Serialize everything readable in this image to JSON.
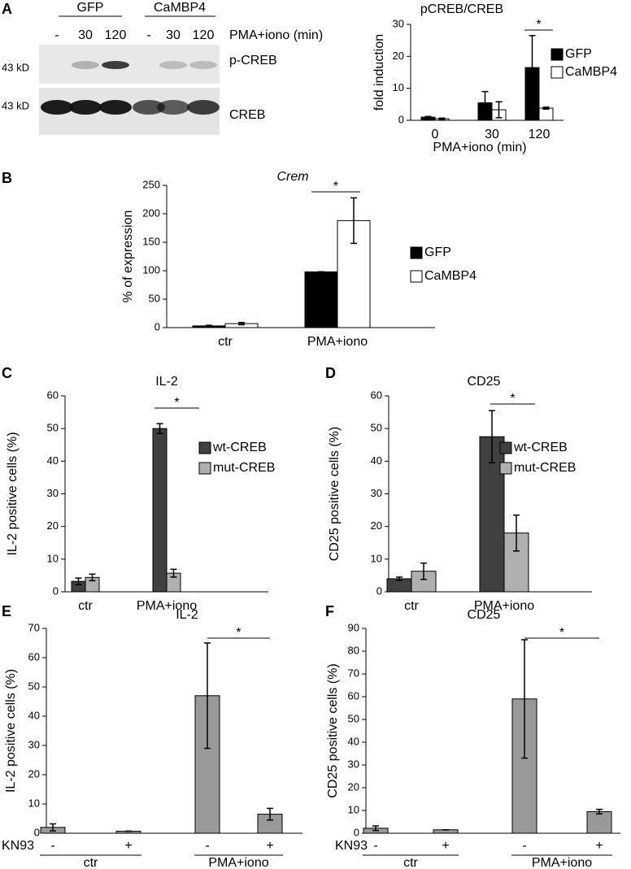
{
  "blot": {
    "panel": "A",
    "groups": [
      "GFP",
      "CaMBP4"
    ],
    "lanes": [
      "-",
      "30",
      "120",
      "-",
      "30",
      "120"
    ],
    "treatment": "PMA+iono (min)",
    "rows": [
      {
        "mw": "43 kD",
        "label": "p-CREB"
      },
      {
        "mw": "43 kD",
        "label": "CREB"
      }
    ]
  },
  "chart_data": [
    {
      "type": "bar",
      "title": "pCREB/CREB",
      "y_label": "fold induction",
      "x_label": "PMA+iono (min)",
      "categories": [
        "0",
        "30",
        "120"
      ],
      "ylim": [
        0,
        30
      ],
      "yticks": [
        0,
        10,
        20,
        30
      ],
      "annotation": "*",
      "series": [
        {
          "name": "GFP",
          "color": "#000000",
          "values": [
            1,
            5.5,
            16.5
          ],
          "errors": [
            0.2,
            3.5,
            10
          ]
        },
        {
          "name": "CaMBP4",
          "color": "#ffffff",
          "values": [
            0.5,
            3.3,
            3.8
          ],
          "errors": [
            0.2,
            2.5,
            0.3
          ]
        }
      ]
    },
    {
      "type": "bar",
      "panel": "B",
      "title": "Crem",
      "y_label": "% of expression",
      "categories": [
        "ctr",
        "PMA+iono"
      ],
      "ylim": [
        0,
        250
      ],
      "yticks": [
        0,
        50,
        100,
        150,
        200,
        250
      ],
      "annotation": "*",
      "series": [
        {
          "name": "GFP",
          "color": "#000000",
          "values": [
            3,
            98
          ],
          "errors": [
            1,
            0
          ]
        },
        {
          "name": "CaMBP4",
          "color": "#ffffff",
          "values": [
            7,
            188
          ],
          "errors": [
            2,
            40
          ]
        }
      ]
    },
    {
      "type": "bar",
      "panel": "C",
      "title": "IL-2",
      "y_label": "IL-2 positive cells (%)",
      "categories": [
        "ctr",
        "PMA+iono"
      ],
      "ylim": [
        0,
        60
      ],
      "yticks": [
        0,
        10,
        20,
        30,
        40,
        50,
        60
      ],
      "annotation": "*",
      "series": [
        {
          "name": "wt-CREB",
          "color": "#404040",
          "values": [
            3.2,
            50
          ],
          "errors": [
            1,
            1.5
          ]
        },
        {
          "name": "mut-CREB",
          "color": "#b0b0b0",
          "values": [
            4.4,
            5.7
          ],
          "errors": [
            1,
            1.2
          ]
        }
      ]
    },
    {
      "type": "bar",
      "panel": "D",
      "title": "CD25",
      "y_label": "CD25 positive cells (%)",
      "categories": [
        "ctr",
        "PMA+iono"
      ],
      "ylim": [
        0,
        60
      ],
      "yticks": [
        0,
        10,
        20,
        30,
        40,
        50,
        60
      ],
      "annotation": "*",
      "series": [
        {
          "name": "wt-CREB",
          "color": "#404040",
          "values": [
            4,
            47.5
          ],
          "errors": [
            0.5,
            8
          ]
        },
        {
          "name": "mut-CREB",
          "color": "#b0b0b0",
          "values": [
            6.3,
            18
          ],
          "errors": [
            2.5,
            5.5
          ]
        }
      ]
    },
    {
      "type": "bar",
      "panel": "E",
      "title": "IL-2",
      "y_label": "IL-2 positive cells (%)",
      "row_label": "KN93",
      "categories": [
        "-",
        "+",
        "-",
        "+"
      ],
      "groups": [
        "ctr",
        "PMA+iono"
      ],
      "ylim": [
        0,
        70
      ],
      "yticks": [
        0,
        10,
        20,
        30,
        40,
        50,
        60,
        70
      ],
      "annotation": "*",
      "series": [
        {
          "color": "#999999",
          "values": [
            2,
            0.7,
            47,
            6.5
          ],
          "errors": [
            1.2,
            0,
            18,
            2
          ]
        }
      ]
    },
    {
      "type": "bar",
      "panel": "F",
      "title": "CD25",
      "y_label": "CD25 positive cells (%)",
      "row_label": "KN93",
      "categories": [
        "-",
        "+",
        "-",
        "+"
      ],
      "groups": [
        "ctr",
        "PMA+iono"
      ],
      "ylim": [
        0,
        90
      ],
      "yticks": [
        0,
        10,
        20,
        30,
        40,
        50,
        60,
        70,
        80,
        90
      ],
      "annotation": "*",
      "series": [
        {
          "color": "#999999",
          "values": [
            2.2,
            1.5,
            59,
            9.5
          ],
          "errors": [
            1,
            0,
            26,
            1
          ]
        }
      ]
    }
  ]
}
